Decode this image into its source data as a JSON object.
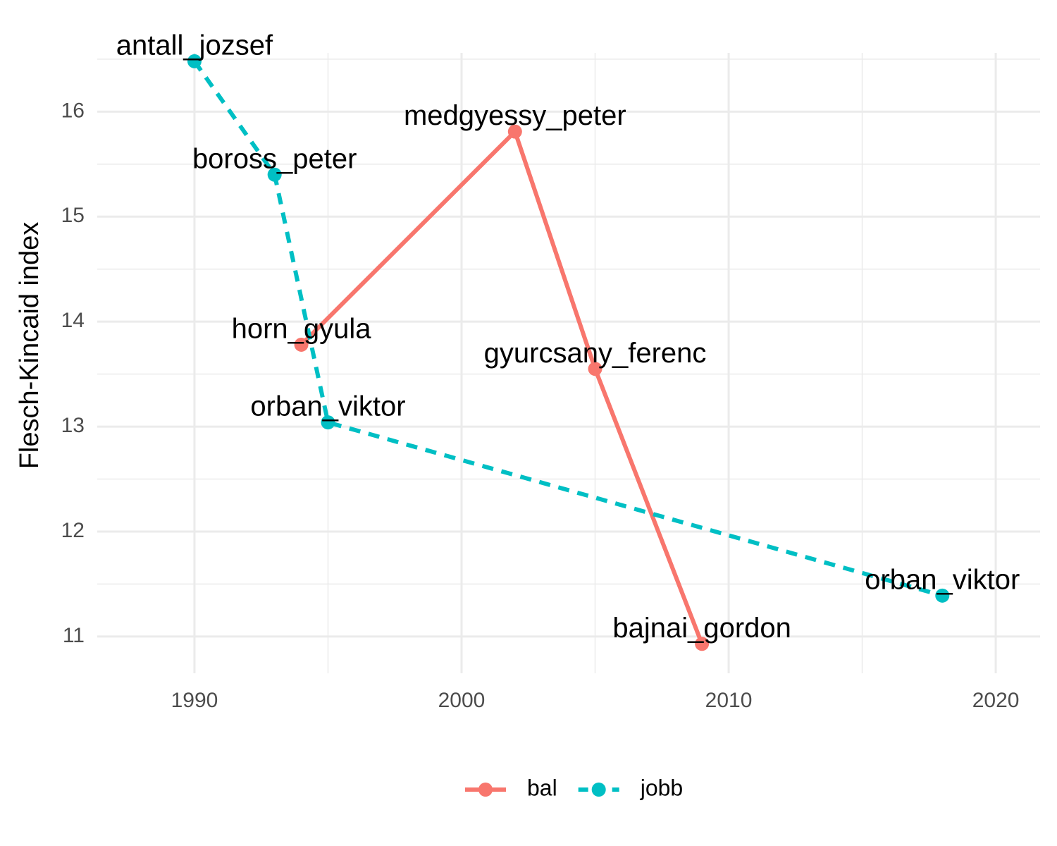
{
  "chart_data": {
    "type": "line",
    "y_label": "Flesch-Kincaid index",
    "xlim": [
      1986.36,
      2021.66
    ],
    "xticks": [
      1990,
      2000,
      2010,
      2020
    ],
    "ylim": [
      10.65,
      16.56
    ],
    "yticks": [
      11,
      12,
      13,
      14,
      15,
      16
    ],
    "grid": true,
    "legend": "bottom",
    "series": [
      {
        "name": "bal",
        "color": "#f8766d",
        "dash": "solid",
        "x": [
          1994,
          2002,
          2005,
          2009
        ],
        "values": [
          13.78,
          15.81,
          13.55,
          10.93
        ],
        "labels": [
          "horn_gyula",
          "medgyessy_peter",
          "gyurcsany_ferenc",
          "bajnai_gordon"
        ]
      },
      {
        "name": "jobb",
        "color": "#00bfc4",
        "dash": "dashed",
        "x": [
          1990,
          1993,
          1995,
          2018
        ],
        "values": [
          16.48,
          15.4,
          13.04,
          11.39
        ],
        "labels": [
          "antall_jozsef",
          "boross_peter",
          "orban_viktor",
          "orban_viktor"
        ]
      }
    ]
  }
}
